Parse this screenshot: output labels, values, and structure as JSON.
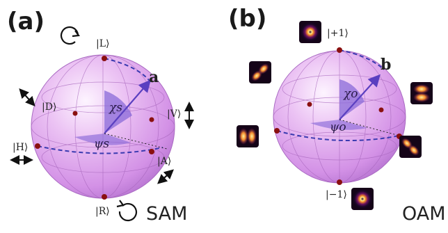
{
  "panel_a": {
    "label": "(a)",
    "tag": "SAM",
    "states": {
      "L": "|L⟩",
      "R": "|R⟩",
      "H": "|H⟩",
      "V": "|V⟩",
      "D": "|D⟩",
      "A": "|A⟩"
    },
    "vector_label": "a",
    "polar_angle": "χs",
    "azimuth_angle": "ψs"
  },
  "panel_b": {
    "label": "(b)",
    "tag": "OAM",
    "states": {
      "plus": "|+1⟩",
      "minus": "|−1⟩"
    },
    "vector_label": "b",
    "polar_angle": "χo",
    "azimuth_angle": "ψo"
  },
  "colors": {
    "sphere": "#d79ee9",
    "sphere_edge": "#a061b8",
    "equator": "#3a3ab0",
    "vector": "#5a3fc0",
    "point": "#8a1010",
    "wedge": "#8a6ad8"
  }
}
